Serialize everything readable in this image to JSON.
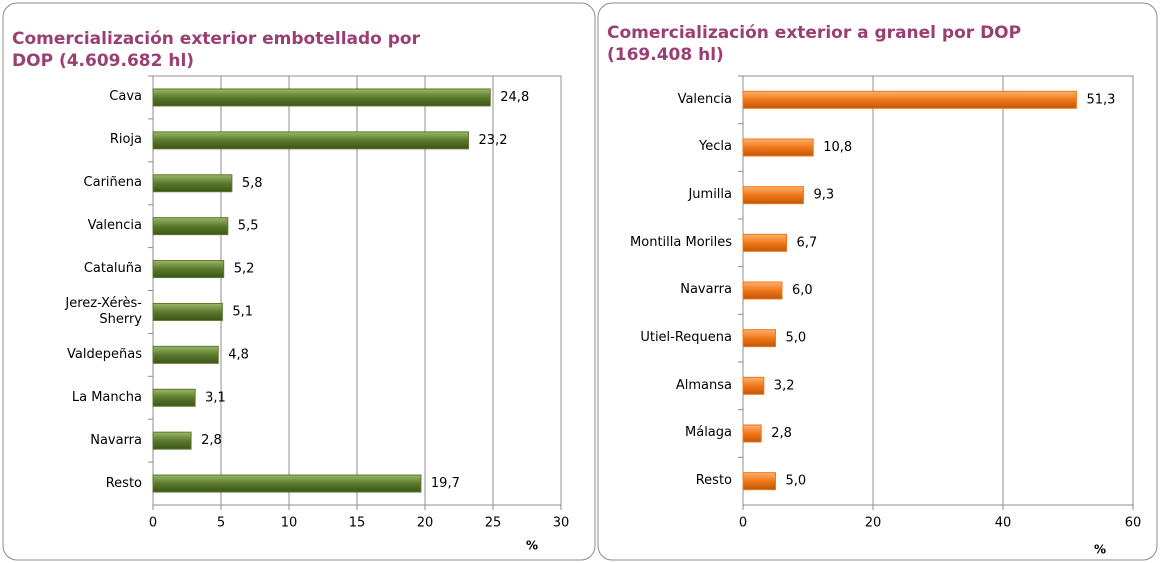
{
  "chart_data": [
    {
      "type": "bar",
      "orientation": "horizontal",
      "title": "Comercialización exterior embotellado por DOP (4.609.682 hl)",
      "categories": [
        "Cava",
        "Rioja",
        "Cariñena",
        "Valencia",
        "Cataluña",
        "Jerez-Xérès-Sherry",
        "Valdepeñas",
        "La Mancha",
        "Navarra",
        "Resto"
      ],
      "values": [
        24.8,
        23.2,
        5.8,
        5.5,
        5.2,
        5.1,
        4.8,
        3.1,
        2.8,
        19.7
      ],
      "value_labels": [
        "24,8",
        "23,2",
        "5,8",
        "5,5",
        "5,2",
        "5,1",
        "4,8",
        "3,1",
        "2,8",
        "19,7"
      ],
      "color": "#5b7a2c",
      "xlim": [
        0,
        30
      ],
      "xticks": [
        0,
        5,
        10,
        15,
        20,
        25,
        30
      ],
      "grid": true,
      "x_label": "%"
    },
    {
      "type": "bar",
      "orientation": "horizontal",
      "title": "Comercialización exterior a granel por DOP (169.408 hl)",
      "categories": [
        "Valencia",
        "Yecla",
        "Jumilla",
        "Montilla Moriles",
        "Navarra",
        "Utiel-Requena",
        "Almansa",
        "Málaga",
        "Resto"
      ],
      "values": [
        51.3,
        10.8,
        9.3,
        6.7,
        6.0,
        5.0,
        3.2,
        2.8,
        5.0
      ],
      "value_labels": [
        "51,3",
        "10,8",
        "9,3",
        "6,7",
        "6,0",
        "5,0",
        "3,2",
        "2,8",
        "5,0"
      ],
      "color": "#f07818",
      "xlim": [
        0,
        60
      ],
      "xticks": [
        0,
        20,
        40,
        60
      ],
      "grid": true,
      "x_label": "%"
    }
  ]
}
